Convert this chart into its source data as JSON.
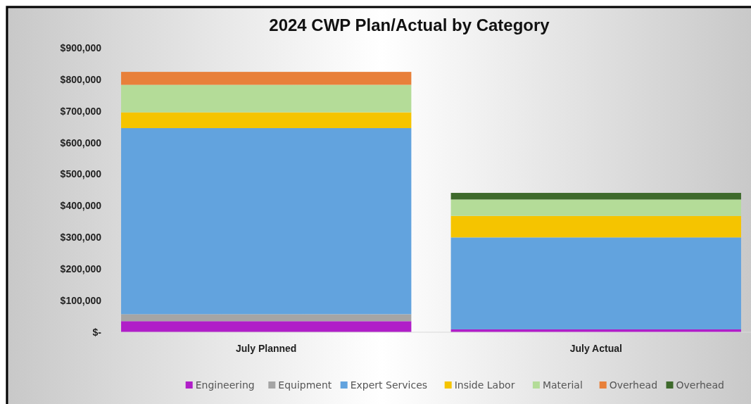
{
  "chart_data": {
    "type": "bar",
    "title": "2024 CWP Plan/Actual by Category",
    "stacked": true,
    "categories": [
      "July Planned",
      "July Actual"
    ],
    "series": [
      {
        "name": "Engineering",
        "color": "#b01ec8",
        "values": [
          35000,
          9000
        ]
      },
      {
        "name": "Equipment",
        "color": "#a5a5a5",
        "values": [
          22000,
          0
        ]
      },
      {
        "name": "Expert Services",
        "color": "#62a3de",
        "values": [
          589000,
          291000
        ]
      },
      {
        "name": "Inside Labor",
        "color": "#f5c400",
        "values": [
          50000,
          68000
        ]
      },
      {
        "name": "Material",
        "color": "#b4dc98",
        "values": [
          87000,
          52000
        ]
      },
      {
        "name": "Overhead",
        "color": "#e8803a",
        "values": [
          41000,
          0
        ]
      },
      {
        "name": "Overhead",
        "color": "#3e6a2c",
        "values": [
          0,
          21000
        ]
      }
    ],
    "ylim": [
      0,
      900000
    ],
    "yticks": [
      {
        "value": 0,
        "label": "$-"
      },
      {
        "value": 100000,
        "label": "$100,000"
      },
      {
        "value": 200000,
        "label": "$200,000"
      },
      {
        "value": 300000,
        "label": "$300,000"
      },
      {
        "value": 400000,
        "label": "$400,000"
      },
      {
        "value": 500000,
        "label": "$500,000"
      },
      {
        "value": 600000,
        "label": "$600,000"
      },
      {
        "value": 700000,
        "label": "$700,000"
      },
      {
        "value": 800000,
        "label": "$800,000"
      },
      {
        "value": 900000,
        "label": "$900,000"
      }
    ],
    "grid": false,
    "legend": "bottom"
  }
}
